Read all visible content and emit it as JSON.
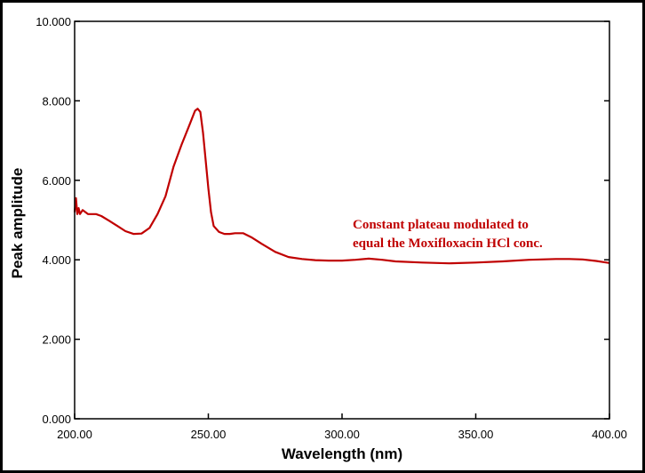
{
  "chart_data": {
    "type": "line",
    "title": "",
    "xlabel": "Wavelength (nm)",
    "ylabel": "Peak amplitude",
    "xlim": [
      200,
      400
    ],
    "ylim": [
      0,
      10
    ],
    "grid": false,
    "x_ticks": [
      "200.00",
      "250.00",
      "300.00",
      "350.00",
      "400.00"
    ],
    "y_ticks": [
      "0.000",
      "2.000",
      "4.000",
      "6.000",
      "8.000",
      "10.000"
    ],
    "annotations": [
      "Constant plateau modulated to",
      "equal the Moxifloxacin HCl conc."
    ],
    "colors": {
      "series": "#c00000",
      "annotation": "#c00000",
      "axes": "#000000"
    },
    "series": [
      {
        "x": [
          200,
          200.5,
          201,
          201.5,
          202,
          203,
          205,
          208,
          210,
          213,
          216,
          219,
          222,
          225,
          228,
          231,
          234,
          237,
          240,
          243,
          245,
          246,
          247,
          248,
          249,
          250,
          251,
          252,
          254,
          256,
          258,
          260,
          263,
          266,
          270,
          275,
          280,
          285,
          290,
          295,
          300,
          305,
          310,
          315,
          320,
          330,
          340,
          350,
          360,
          370,
          380,
          385,
          390,
          395,
          400
        ],
        "y": [
          5.2,
          5.55,
          5.15,
          5.3,
          5.15,
          5.25,
          5.15,
          5.15,
          5.1,
          4.98,
          4.85,
          4.72,
          4.65,
          4.66,
          4.8,
          5.15,
          5.6,
          6.35,
          6.9,
          7.4,
          7.75,
          7.8,
          7.72,
          7.2,
          6.5,
          5.8,
          5.2,
          4.85,
          4.7,
          4.65,
          4.65,
          4.67,
          4.67,
          4.57,
          4.4,
          4.2,
          4.07,
          4.02,
          3.99,
          3.98,
          3.98,
          4.0,
          4.03,
          4.0,
          3.96,
          3.93,
          3.91,
          3.93,
          3.96,
          4.0,
          4.02,
          4.02,
          4.01,
          3.97,
          3.92
        ]
      }
    ]
  }
}
